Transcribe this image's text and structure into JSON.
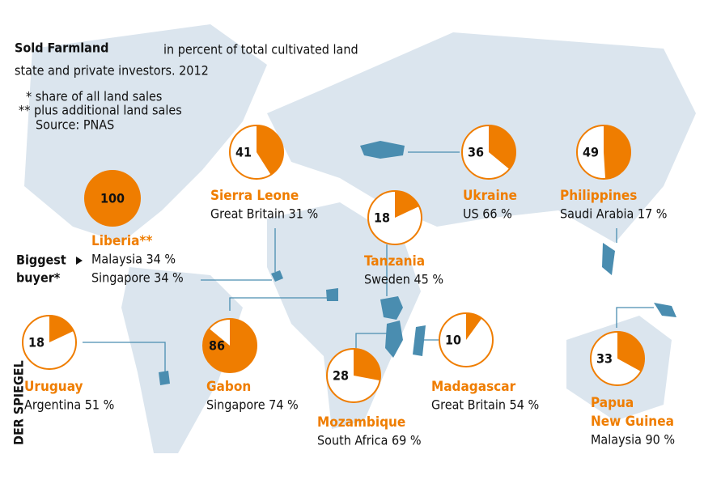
{
  "chart_data": {
    "type": "pie-map",
    "title": "Sold Farmland",
    "title_suffix": "in percent of total cultivated land",
    "subtitle": "state and private investors. 2012",
    "notes": [
      "* share of all land sales",
      "** plus additional land sales",
      "Source: PNAS"
    ],
    "buyer_label": [
      "Biggest",
      "buyer*"
    ],
    "watermark": "DER SPIEGEL",
    "color": "#ef7d00",
    "countries": [
      {
        "name_lines": [
          "Sierra Leone"
        ],
        "value": 41,
        "buyers": [
          "Great Britain 31 %"
        ]
      },
      {
        "name_lines": [
          "Ukraine"
        ],
        "value": 36,
        "buyers": [
          "US 66 %"
        ]
      },
      {
        "name_lines": [
          "Philippines"
        ],
        "value": 49,
        "buyers": [
          "Saudi Arabia 17 %"
        ]
      },
      {
        "name_lines": [
          "Liberia**"
        ],
        "value": 100,
        "buyers": [
          "Malaysia 34 %",
          "Singapore 34 %"
        ]
      },
      {
        "name_lines": [
          "Tanzania"
        ],
        "value": 18,
        "buyers": [
          "Sweden 45 %"
        ]
      },
      {
        "name_lines": [
          "Uruguay"
        ],
        "value": 18,
        "buyers": [
          "Argentina 51 %"
        ]
      },
      {
        "name_lines": [
          "Gabon"
        ],
        "value": 86,
        "buyers": [
          "Singapore 74 %"
        ]
      },
      {
        "name_lines": [
          "Mozambique"
        ],
        "value": 28,
        "buyers": [
          "South Africa 69 %"
        ]
      },
      {
        "name_lines": [
          "Madagascar"
        ],
        "value": 10,
        "buyers": [
          "Great Britain 54 %"
        ]
      },
      {
        "name_lines": [
          "Papua",
          "New Guinea"
        ],
        "value": 33,
        "buyers": [
          "Malaysia 90 %"
        ]
      }
    ]
  }
}
